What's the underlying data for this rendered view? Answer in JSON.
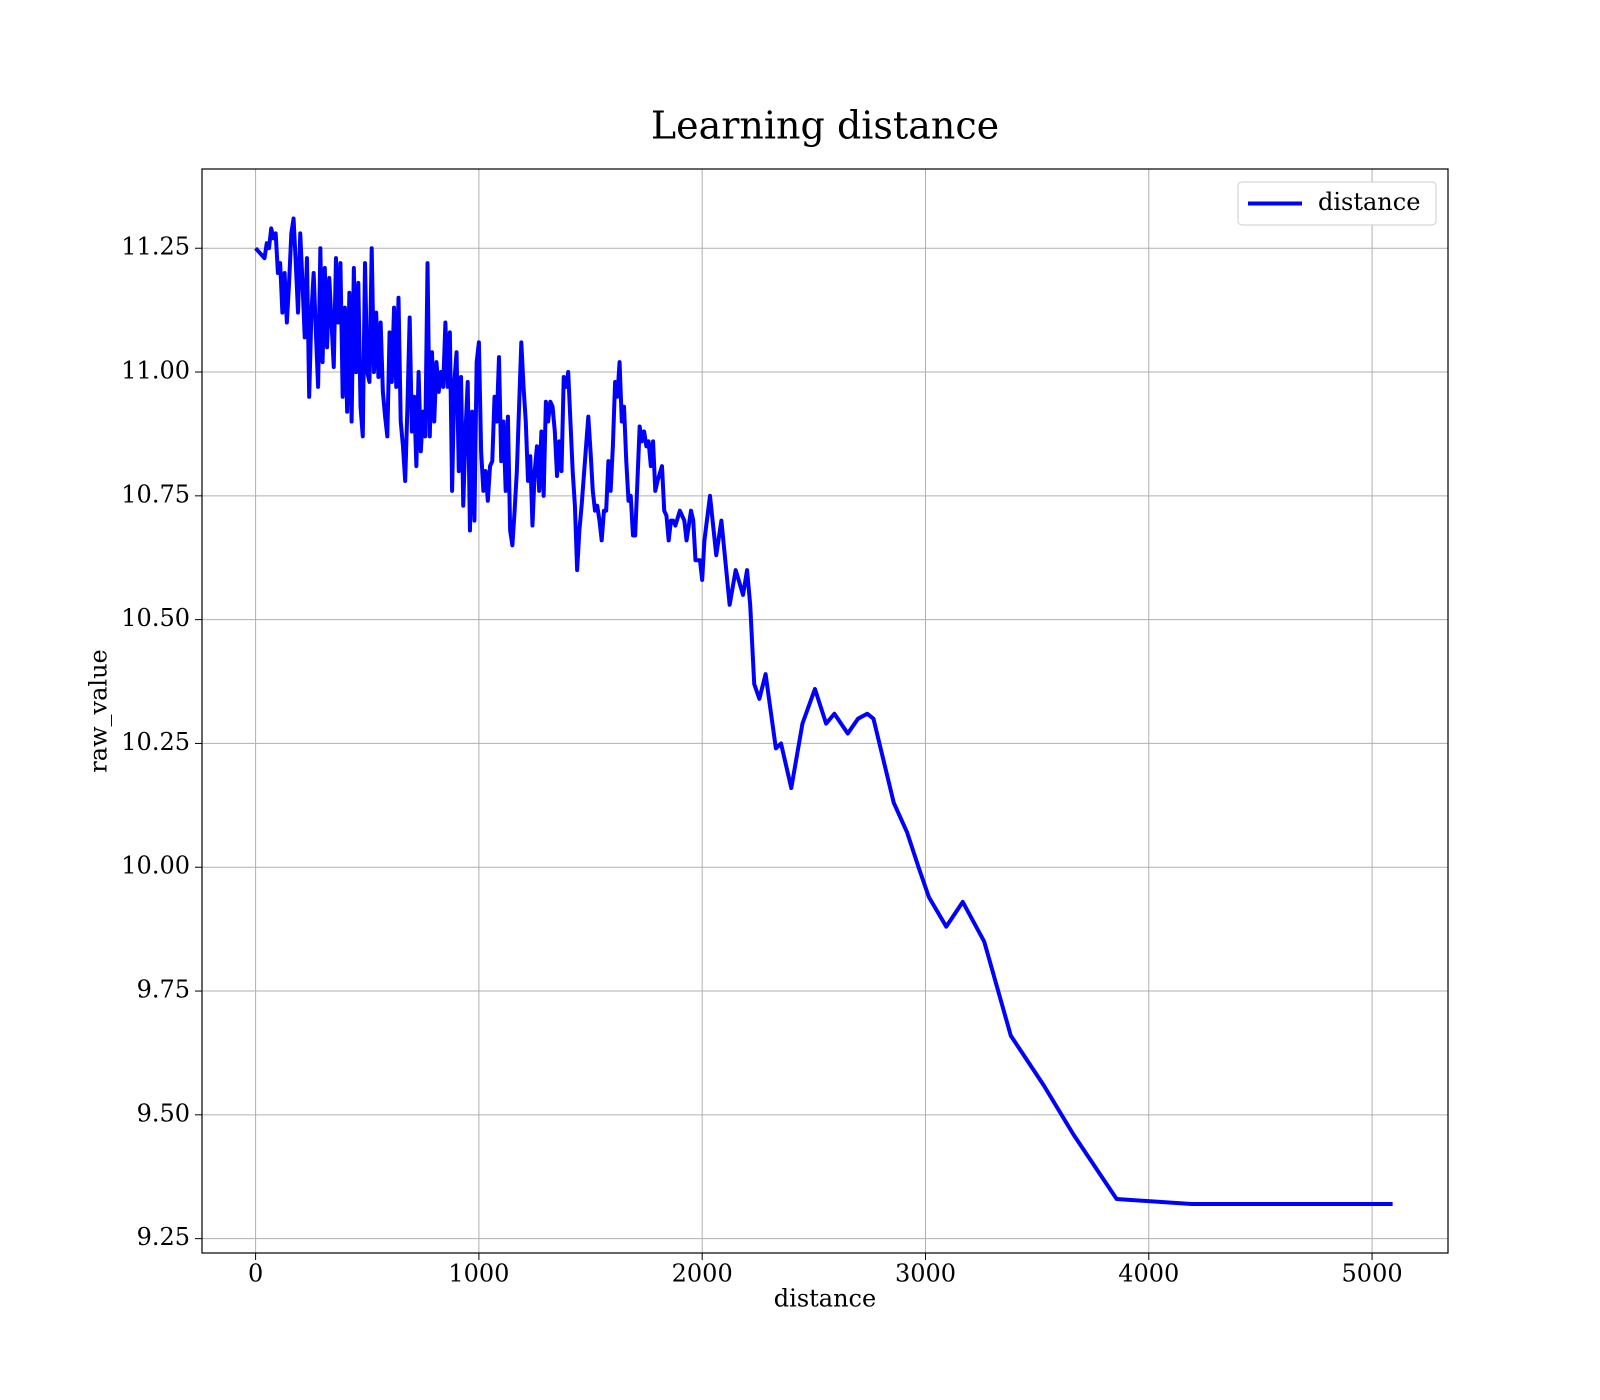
{
  "chart_data": {
    "type": "line",
    "title": "Learning distance",
    "x_label": "distance",
    "y_label": "raw_value",
    "legend_position": "upper right",
    "grid": true,
    "xlim": [
      -240,
      5340
    ],
    "ylim": [
      9.221,
      11.41
    ],
    "xticks": [
      0,
      1000,
      2000,
      3000,
      4000,
      5000
    ],
    "yticks": [
      9.25,
      {
        "value": 9.5,
        "label": "9.50"
      },
      9.75,
      {
        "value": 10,
        "label": "10.00"
      },
      10.25,
      {
        "value": 10.5,
        "label": "10.50"
      },
      10.75,
      {
        "value": 11,
        "label": "11.00"
      },
      11.25
    ],
    "x": [
      0,
      20,
      40,
      50,
      60,
      70,
      80,
      90,
      100,
      110,
      120,
      130,
      140,
      150,
      160,
      170,
      180,
      190,
      200,
      210,
      220,
      230,
      240,
      250,
      260,
      270,
      280,
      290,
      300,
      310,
      320,
      330,
      340,
      350,
      360,
      370,
      380,
      390,
      400,
      410,
      420,
      430,
      440,
      450,
      460,
      470,
      480,
      490,
      500,
      510,
      520,
      530,
      540,
      550,
      560,
      570,
      580,
      590,
      600,
      610,
      620,
      630,
      640,
      650,
      660,
      670,
      680,
      690,
      700,
      710,
      720,
      730,
      740,
      750,
      760,
      770,
      780,
      790,
      800,
      810,
      820,
      830,
      840,
      850,
      860,
      870,
      880,
      890,
      900,
      910,
      920,
      930,
      940,
      950,
      960,
      970,
      980,
      990,
      1000,
      1010,
      1020,
      1030,
      1040,
      1050,
      1060,
      1070,
      1080,
      1090,
      1100,
      1110,
      1120,
      1130,
      1140,
      1150,
      1160,
      1170,
      1180,
      1190,
      1200,
      1210,
      1220,
      1230,
      1240,
      1250,
      1260,
      1270,
      1280,
      1290,
      1300,
      1310,
      1320,
      1330,
      1340,
      1350,
      1360,
      1370,
      1380,
      1390,
      1400,
      1410,
      1420,
      1430,
      1440,
      1450,
      1460,
      1480,
      1490,
      1500,
      1510,
      1520,
      1530,
      1540,
      1550,
      1560,
      1570,
      1580,
      1590,
      1600,
      1610,
      1620,
      1630,
      1640,
      1650,
      1660,
      1670,
      1680,
      1690,
      1700,
      1710,
      1720,
      1730,
      1740,
      1750,
      1760,
      1770,
      1780,
      1790,
      1800,
      1820,
      1830,
      1840,
      1850,
      1860,
      1870,
      1880,
      1900,
      1920,
      1930,
      1950,
      1960,
      1970,
      1990,
      2000,
      2010,
      2035,
      2063,
      2086,
      2123,
      2150,
      2183,
      2201,
      2215,
      2233,
      2256,
      2284,
      2330,
      2353,
      2399,
      2449,
      2505,
      2555,
      2592,
      2652,
      2698,
      2739,
      2767,
      2858,
      2918,
      2969,
      3015,
      3093,
      3167,
      3263,
      3382,
      3529,
      3663,
      3856,
      4191,
      5092
    ],
    "series": [
      {
        "name": "distance",
        "color": "#0000ff",
        "values": [
          11.25,
          11.24,
          11.23,
          11.26,
          11.25,
          11.29,
          11.27,
          11.28,
          11.2,
          11.22,
          11.12,
          11.2,
          11.1,
          11.18,
          11.28,
          11.31,
          11.22,
          11.12,
          11.28,
          11.18,
          11.07,
          11.23,
          10.95,
          11.12,
          11.2,
          11.08,
          10.97,
          11.25,
          11.02,
          11.21,
          11.05,
          11.19,
          11.1,
          11.01,
          11.23,
          11.1,
          11.22,
          10.95,
          11.13,
          10.92,
          11.16,
          10.9,
          11.21,
          11.0,
          11.18,
          10.93,
          10.87,
          11.22,
          11.0,
          10.98,
          11.25,
          11.0,
          11.12,
          10.99,
          11.1,
          10.96,
          10.91,
          10.87,
          11.08,
          10.98,
          11.13,
          10.97,
          11.15,
          10.9,
          10.85,
          10.78,
          10.93,
          11.11,
          10.88,
          10.95,
          10.81,
          11.0,
          10.84,
          10.92,
          10.87,
          11.22,
          10.87,
          11.04,
          10.9,
          11.02,
          10.96,
          11.0,
          10.97,
          11.1,
          10.97,
          11.08,
          10.76,
          10.98,
          11.04,
          10.8,
          10.99,
          10.73,
          10.88,
          10.98,
          10.68,
          10.92,
          10.7,
          11.02,
          11.06,
          10.84,
          10.76,
          10.8,
          10.74,
          10.81,
          10.82,
          10.95,
          10.9,
          11.03,
          10.82,
          10.9,
          10.76,
          10.91,
          10.68,
          10.65,
          10.72,
          10.8,
          10.93,
          11.06,
          10.97,
          10.9,
          10.78,
          10.83,
          10.69,
          10.8,
          10.85,
          10.76,
          10.88,
          10.75,
          10.94,
          10.9,
          10.94,
          10.93,
          10.88,
          10.79,
          10.86,
          10.8,
          10.99,
          10.97,
          11.0,
          10.9,
          10.8,
          10.73,
          10.6,
          10.68,
          10.73,
          10.85,
          10.91,
          10.84,
          10.76,
          10.72,
          10.73,
          10.7,
          10.66,
          10.72,
          10.72,
          10.82,
          10.76,
          10.85,
          10.98,
          10.95,
          11.02,
          10.9,
          10.93,
          10.82,
          10.74,
          10.75,
          10.67,
          10.67,
          10.78,
          10.89,
          10.86,
          10.88,
          10.85,
          10.86,
          10.81,
          10.86,
          10.76,
          10.78,
          10.81,
          10.72,
          10.71,
          10.66,
          10.7,
          10.7,
          10.69,
          10.72,
          10.7,
          10.66,
          10.72,
          10.7,
          10.62,
          10.62,
          10.58,
          10.66,
          10.75,
          10.63,
          10.7,
          10.53,
          10.6,
          10.55,
          10.6,
          10.53,
          10.37,
          10.34,
          10.39,
          10.24,
          10.25,
          10.16,
          10.29,
          10.36,
          10.29,
          10.31,
          10.27,
          10.3,
          10.31,
          10.3,
          10.13,
          10.07,
          10.0,
          9.94,
          9.88,
          9.93,
          9.85,
          9.66,
          9.56,
          9.46,
          9.33,
          9.32,
          9.32
        ]
      }
    ]
  }
}
